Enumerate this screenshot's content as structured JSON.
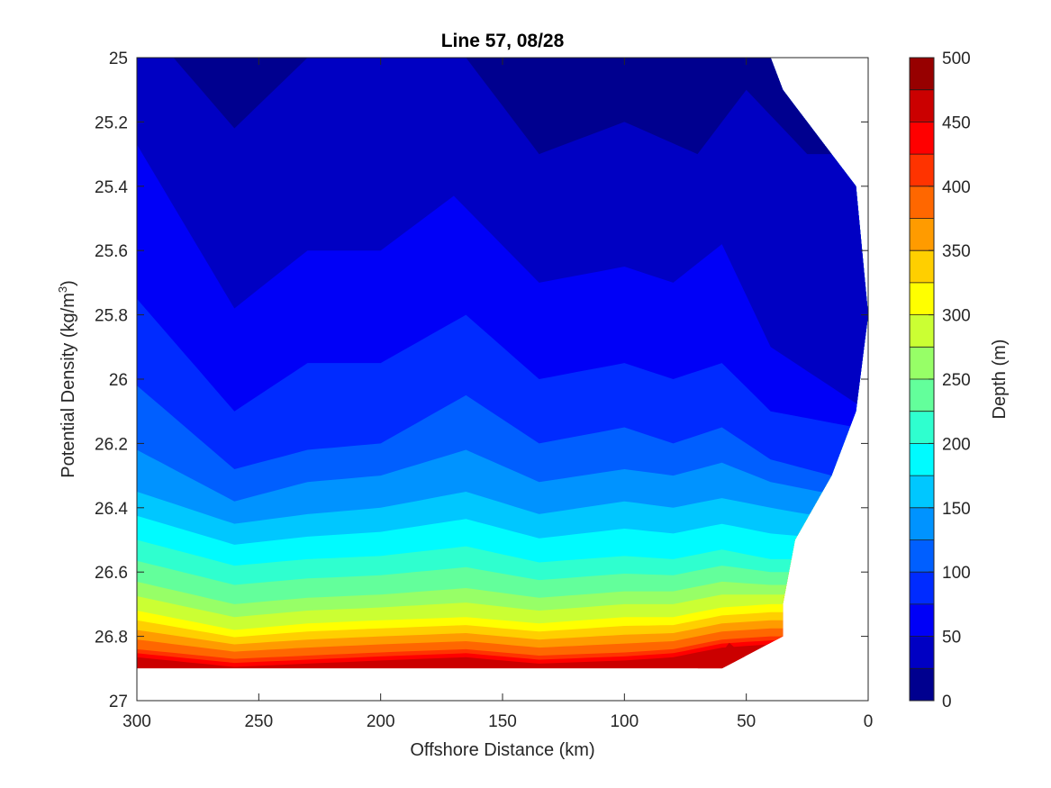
{
  "chart_data": {
    "type": "contour",
    "title": "Line 57, 08/28",
    "xlabel": "Offshore Distance (km)",
    "ylabel_main": "Potential Density (kg/m",
    "ylabel_sup": "3",
    "ylabel_close": ")",
    "colorbar_label": "Depth (m)",
    "xlim": [
      300,
      0
    ],
    "ylim": [
      25,
      27
    ],
    "x_reversed": true,
    "y_reversed": true,
    "xticks": [
      300,
      250,
      200,
      150,
      100,
      50,
      0
    ],
    "yticks": [
      25,
      25.2,
      25.4,
      25.6,
      25.8,
      26,
      26.2,
      26.4,
      26.6,
      26.8,
      27
    ],
    "ytick_labels": [
      "25",
      "25.2",
      "25.4",
      "25.6",
      "25.8",
      "26",
      "26.2",
      "26.4",
      "26.6",
      "26.8",
      "27"
    ],
    "colorbar_ticks": [
      0,
      50,
      100,
      150,
      200,
      250,
      300,
      350,
      400,
      450,
      500
    ],
    "colorbar_range": [
      0,
      500
    ],
    "contour_levels": [
      0,
      25,
      50,
      75,
      100,
      125,
      150,
      175,
      200,
      225,
      250,
      275,
      300,
      325,
      350,
      375,
      400,
      425,
      450,
      475,
      500
    ],
    "level_colors": [
      "#00008f",
      "#0000c3",
      "#0000f7",
      "#002bff",
      "#005fff",
      "#0093ff",
      "#00c7ff",
      "#00fbff",
      "#2fffcf",
      "#63ff9b",
      "#97ff67",
      "#cbff33",
      "#ffff00",
      "#ffcf00",
      "#ff9b00",
      "#ff6700",
      "#ff3300",
      "#ff0000",
      "#cb0000",
      "#970000"
    ],
    "colormap": "jet",
    "data_coverage_edge": {
      "density": [
        25.0,
        25.1,
        25.2,
        25.3,
        25.4,
        25.8,
        26.1,
        26.3,
        26.5,
        26.7,
        26.8,
        26.88,
        26.9
      ],
      "distance_km": [
        40,
        35,
        25,
        15,
        5,
        0,
        5,
        15,
        30,
        35,
        35,
        55,
        60
      ]
    },
    "isopycnal_depth_contours": [
      {
        "level": 25,
        "density_at_distance": {
          "x": [
            285,
            260,
            230,
            205,
            165,
            135,
            100,
            70,
            50,
            25
          ],
          "y": [
            25.0,
            25.22,
            25.0,
            25.0,
            25.0,
            25.3,
            25.2,
            25.3,
            25.1,
            25.3
          ]
        }
      },
      {
        "level": 50,
        "density_at_distance": {
          "x": [
            300,
            260,
            230,
            200,
            170,
            135,
            100,
            80,
            60,
            40,
            0
          ],
          "y": [
            25.27,
            25.78,
            25.6,
            25.6,
            25.43,
            25.7,
            25.65,
            25.7,
            25.58,
            25.9,
            26.1
          ]
        }
      },
      {
        "level": 75,
        "density_at_distance": {
          "x": [
            300,
            260,
            230,
            200,
            165,
            135,
            100,
            80,
            60,
            40,
            5
          ],
          "y": [
            25.75,
            26.1,
            25.95,
            25.95,
            25.8,
            26.0,
            25.95,
            26.0,
            25.95,
            26.1,
            26.15
          ]
        }
      },
      {
        "level": 100,
        "density_at_distance": {
          "x": [
            300,
            260,
            230,
            200,
            165,
            135,
            100,
            80,
            60,
            40,
            15
          ],
          "y": [
            26.02,
            26.28,
            26.22,
            26.2,
            26.05,
            26.2,
            26.15,
            26.2,
            26.15,
            26.25,
            26.3
          ]
        }
      },
      {
        "level": 125,
        "density_at_distance": {
          "x": [
            300,
            260,
            230,
            200,
            165,
            135,
            100,
            80,
            60,
            40,
            20
          ],
          "y": [
            26.22,
            26.38,
            26.32,
            26.3,
            26.22,
            26.32,
            26.28,
            26.3,
            26.26,
            26.32,
            26.35
          ]
        }
      },
      {
        "level": 150,
        "density_at_distance": {
          "x": [
            300,
            260,
            230,
            200,
            165,
            135,
            100,
            80,
            60,
            40,
            25
          ],
          "y": [
            26.35,
            26.45,
            26.42,
            26.4,
            26.35,
            26.42,
            26.38,
            26.4,
            26.37,
            26.4,
            26.42
          ]
        }
      },
      {
        "level": 200,
        "density_at_distance": {
          "x": [
            300,
            260,
            230,
            200,
            165,
            135,
            100,
            80,
            60,
            40,
            30
          ],
          "y": [
            26.5,
            26.58,
            26.56,
            26.55,
            26.52,
            26.57,
            26.55,
            26.56,
            26.53,
            26.56,
            26.56
          ]
        }
      },
      {
        "level": 250,
        "density_at_distance": {
          "x": [
            300,
            260,
            230,
            200,
            165,
            135,
            100,
            80,
            60,
            40,
            30
          ],
          "y": [
            26.63,
            26.7,
            26.68,
            26.67,
            26.65,
            26.68,
            26.66,
            26.66,
            26.63,
            26.64,
            26.64
          ]
        }
      },
      {
        "level": 300,
        "density_at_distance": {
          "x": [
            300,
            260,
            230,
            200,
            165,
            135,
            100,
            80,
            60,
            40,
            33
          ],
          "y": [
            26.72,
            26.78,
            26.76,
            26.75,
            26.74,
            26.76,
            26.74,
            26.74,
            26.71,
            26.7,
            26.7
          ]
        }
      },
      {
        "level": 400,
        "density_at_distance": {
          "x": [
            300,
            260,
            230,
            200,
            165,
            135,
            100,
            80,
            60,
            40,
            35
          ],
          "y": [
            26.84,
            26.87,
            26.86,
            26.85,
            26.84,
            26.86,
            26.85,
            26.84,
            26.81,
            26.8,
            26.8
          ]
        }
      },
      {
        "level": 475,
        "density_at_distance": {
          "x": [
            70,
            62,
            57
          ],
          "y": [
            26.9,
            26.87,
            26.82
          ]
        }
      }
    ]
  }
}
